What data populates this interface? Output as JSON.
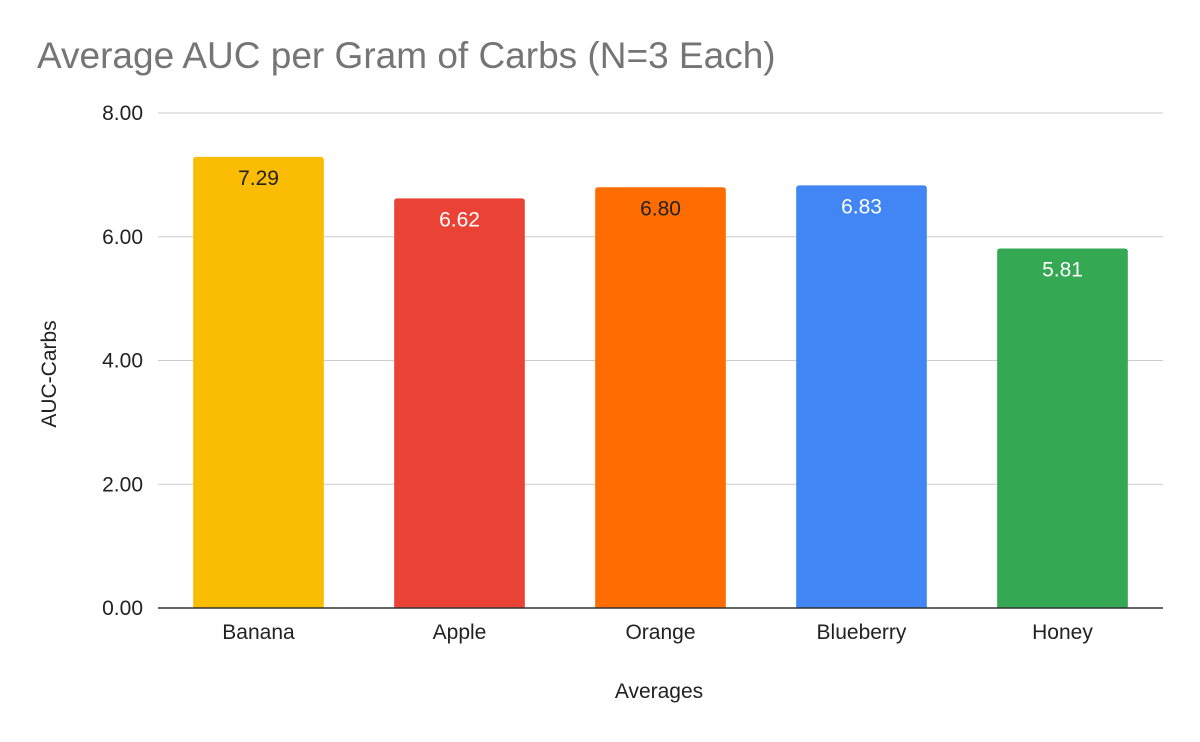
{
  "chart_data": {
    "type": "bar",
    "title": "Average AUC per Gram of Carbs (N=3 Each)",
    "xlabel": "Averages",
    "ylabel": "AUC-Carbs",
    "categories": [
      "Banana",
      "Apple",
      "Orange",
      "Blueberry",
      "Honey"
    ],
    "values": [
      7.29,
      6.62,
      6.8,
      6.83,
      5.81
    ],
    "data_labels": [
      "7.29",
      "6.62",
      "6.80",
      "6.83",
      "5.81"
    ],
    "colors": [
      "#fbbc04",
      "#ea4335",
      "#ff6d01",
      "#4285f4",
      "#34a853"
    ],
    "label_colors": [
      "#222222",
      "#ffffff",
      "#222222",
      "#ffffff",
      "#ffffff"
    ],
    "ylim": [
      0,
      8
    ],
    "yticks": [
      0,
      2,
      4,
      6,
      8
    ],
    "ytick_labels": [
      "0.00",
      "2.00",
      "4.00",
      "6.00",
      "8.00"
    ],
    "grid": true,
    "legend": "none"
  }
}
